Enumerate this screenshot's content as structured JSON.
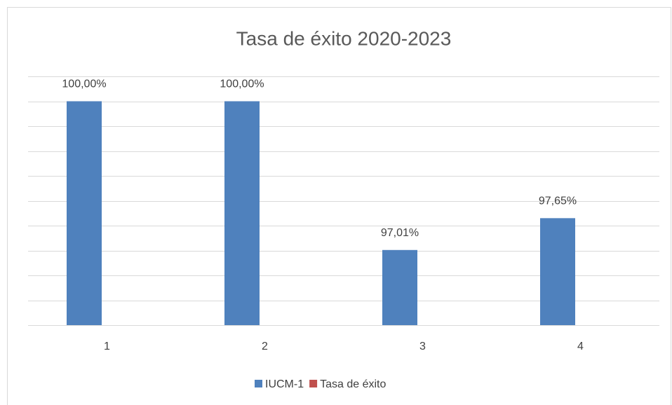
{
  "chart_data": {
    "type": "bar",
    "title": "Tasa de éxito 2020-2023",
    "categories": [
      "1",
      "2",
      "3",
      "4"
    ],
    "series": [
      {
        "name": "IUCM-1",
        "color": "#4f81bd",
        "values": [
          100,
          100,
          97.01,
          97.65
        ],
        "value_labels": [
          "100,00%",
          "100,00%",
          "97,01%",
          "97,65%"
        ]
      },
      {
        "name": "Tasa de éxito",
        "color": "#c0504d",
        "values": [
          null,
          null,
          null,
          null
        ]
      }
    ],
    "ylim": [
      95.5,
      100.5
    ],
    "yticks": [
      95.5,
      96,
      96.5,
      97,
      97.5,
      98,
      98.5,
      99,
      99.5,
      100,
      100.5
    ],
    "grid": true,
    "legend": "bottom"
  }
}
